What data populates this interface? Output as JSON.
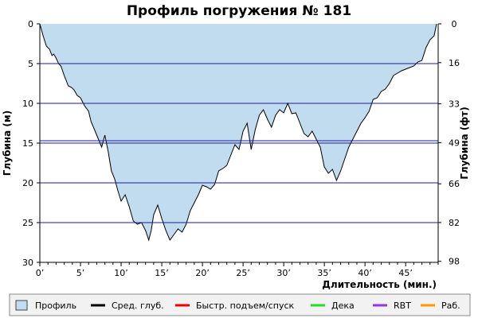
{
  "chart_data": {
    "type": "area",
    "title": "Профиль погружения № 181",
    "xlabel": "Длительность (мин.)",
    "ylabel_left": "Глубина (м)",
    "ylabel_right": "Глубина (фт)",
    "xlim": [
      0,
      49
    ],
    "ylim": [
      30,
      0
    ],
    "x_ticks": [
      0,
      5,
      10,
      15,
      20,
      25,
      30,
      35,
      40,
      45
    ],
    "x_tick_labels": [
      "0’",
      "5’",
      "10’",
      "15’",
      "20’",
      "25’",
      "30’",
      "35’",
      "40’",
      "45’"
    ],
    "y_ticks_left": [
      0,
      5,
      10,
      15,
      20,
      25,
      30
    ],
    "y_tick_labels_left": [
      "0",
      "5",
      "10",
      "15",
      "20",
      "25",
      "30"
    ],
    "y_ticks_right": [
      0,
      4.88,
      10.06,
      14.94,
      20.12,
      24.99,
      29.87
    ],
    "y_tick_labels_right": [
      "0",
      "16",
      "33",
      "49",
      "66",
      "82",
      "98"
    ],
    "horizontal_lines": [
      5,
      10,
      14.7,
      15,
      20,
      25
    ],
    "series": [
      {
        "name": "Профиль",
        "color": "#c0dcee",
        "x": [
          0,
          0.4,
          0.8,
          1.2,
          1.5,
          1.7,
          2.0,
          2.3,
          2.6,
          3.0,
          3.5,
          3.9,
          4.2,
          4.6,
          5.0,
          5.5,
          6.0,
          6.3,
          6.8,
          7.2,
          7.6,
          8.0,
          8.4,
          8.8,
          9.2,
          9.6,
          10.0,
          10.5,
          11.0,
          11.5,
          12.0,
          12.5,
          13.0,
          13.4,
          13.7,
          14.0,
          14.5,
          15.0,
          15.5,
          16.0,
          16.5,
          17.0,
          17.5,
          18.0,
          18.5,
          19.0,
          19.5,
          20.0,
          20.5,
          21.0,
          21.5,
          22.0,
          22.5,
          23.0,
          23.5,
          24.0,
          24.5,
          25.0,
          25.5,
          26.0,
          26.5,
          27.0,
          27.5,
          28.0,
          28.5,
          29.0,
          29.5,
          30.0,
          30.5,
          31.0,
          31.5,
          32.0,
          32.5,
          33.0,
          33.5,
          34.0,
          34.5,
          35.0,
          35.5,
          36.0,
          36.5,
          37.0,
          37.5,
          38.0,
          38.5,
          39.0,
          39.5,
          40.0,
          40.5,
          41.0,
          41.5,
          42.0,
          42.5,
          43.0,
          43.5,
          44.0,
          44.5,
          45.0,
          45.5,
          46.0,
          46.5,
          47.0,
          47.5,
          48.0,
          48.5,
          48.8
        ],
        "y": [
          0,
          1.5,
          2.8,
          3.2,
          4.0,
          3.8,
          4.3,
          5.0,
          5.3,
          6.5,
          7.8,
          8.0,
          8.3,
          9.0,
          9.3,
          10.3,
          11.0,
          12.3,
          13.5,
          14.5,
          15.5,
          14.0,
          16.0,
          18.5,
          19.5,
          21.0,
          22.3,
          21.5,
          23.0,
          24.8,
          25.2,
          25.0,
          26.0,
          27.2,
          26.0,
          24.0,
          22.8,
          24.5,
          26.0,
          27.2,
          26.5,
          25.8,
          26.2,
          25.2,
          23.5,
          22.5,
          21.5,
          20.3,
          20.5,
          20.8,
          20.2,
          18.5,
          18.2,
          17.8,
          16.5,
          15.2,
          15.8,
          13.5,
          12.5,
          15.8,
          13.3,
          11.5,
          10.8,
          12.0,
          13.0,
          11.5,
          10.8,
          11.2,
          10.0,
          11.3,
          11.2,
          12.5,
          13.8,
          14.2,
          13.5,
          14.5,
          15.5,
          18.0,
          18.8,
          18.3,
          19.7,
          18.5,
          17.0,
          15.5,
          14.5,
          13.5,
          12.5,
          11.8,
          11.0,
          9.5,
          9.3,
          8.5,
          8.2,
          7.5,
          6.5,
          6.2,
          5.9,
          5.7,
          5.5,
          5.3,
          4.8,
          4.6,
          3.0,
          2.0,
          1.5,
          0
        ]
      }
    ],
    "legend": [
      {
        "name": "Профиль",
        "color": "#c0dcee",
        "kind": "box"
      },
      {
        "name": "Сред. глуб.",
        "color": "#000000",
        "kind": "line"
      },
      {
        "name": "Быстр. подъем/спуск",
        "color": "#ee0000",
        "kind": "line"
      },
      {
        "name": "Дека",
        "color": "#22dd22",
        "kind": "line"
      },
      {
        "name": "RBT",
        "color": "#9933dd",
        "kind": "line"
      },
      {
        "name": "Раб.",
        "color": "#ff9900",
        "kind": "line"
      }
    ],
    "grid": false,
    "legend_position": "bottom"
  }
}
